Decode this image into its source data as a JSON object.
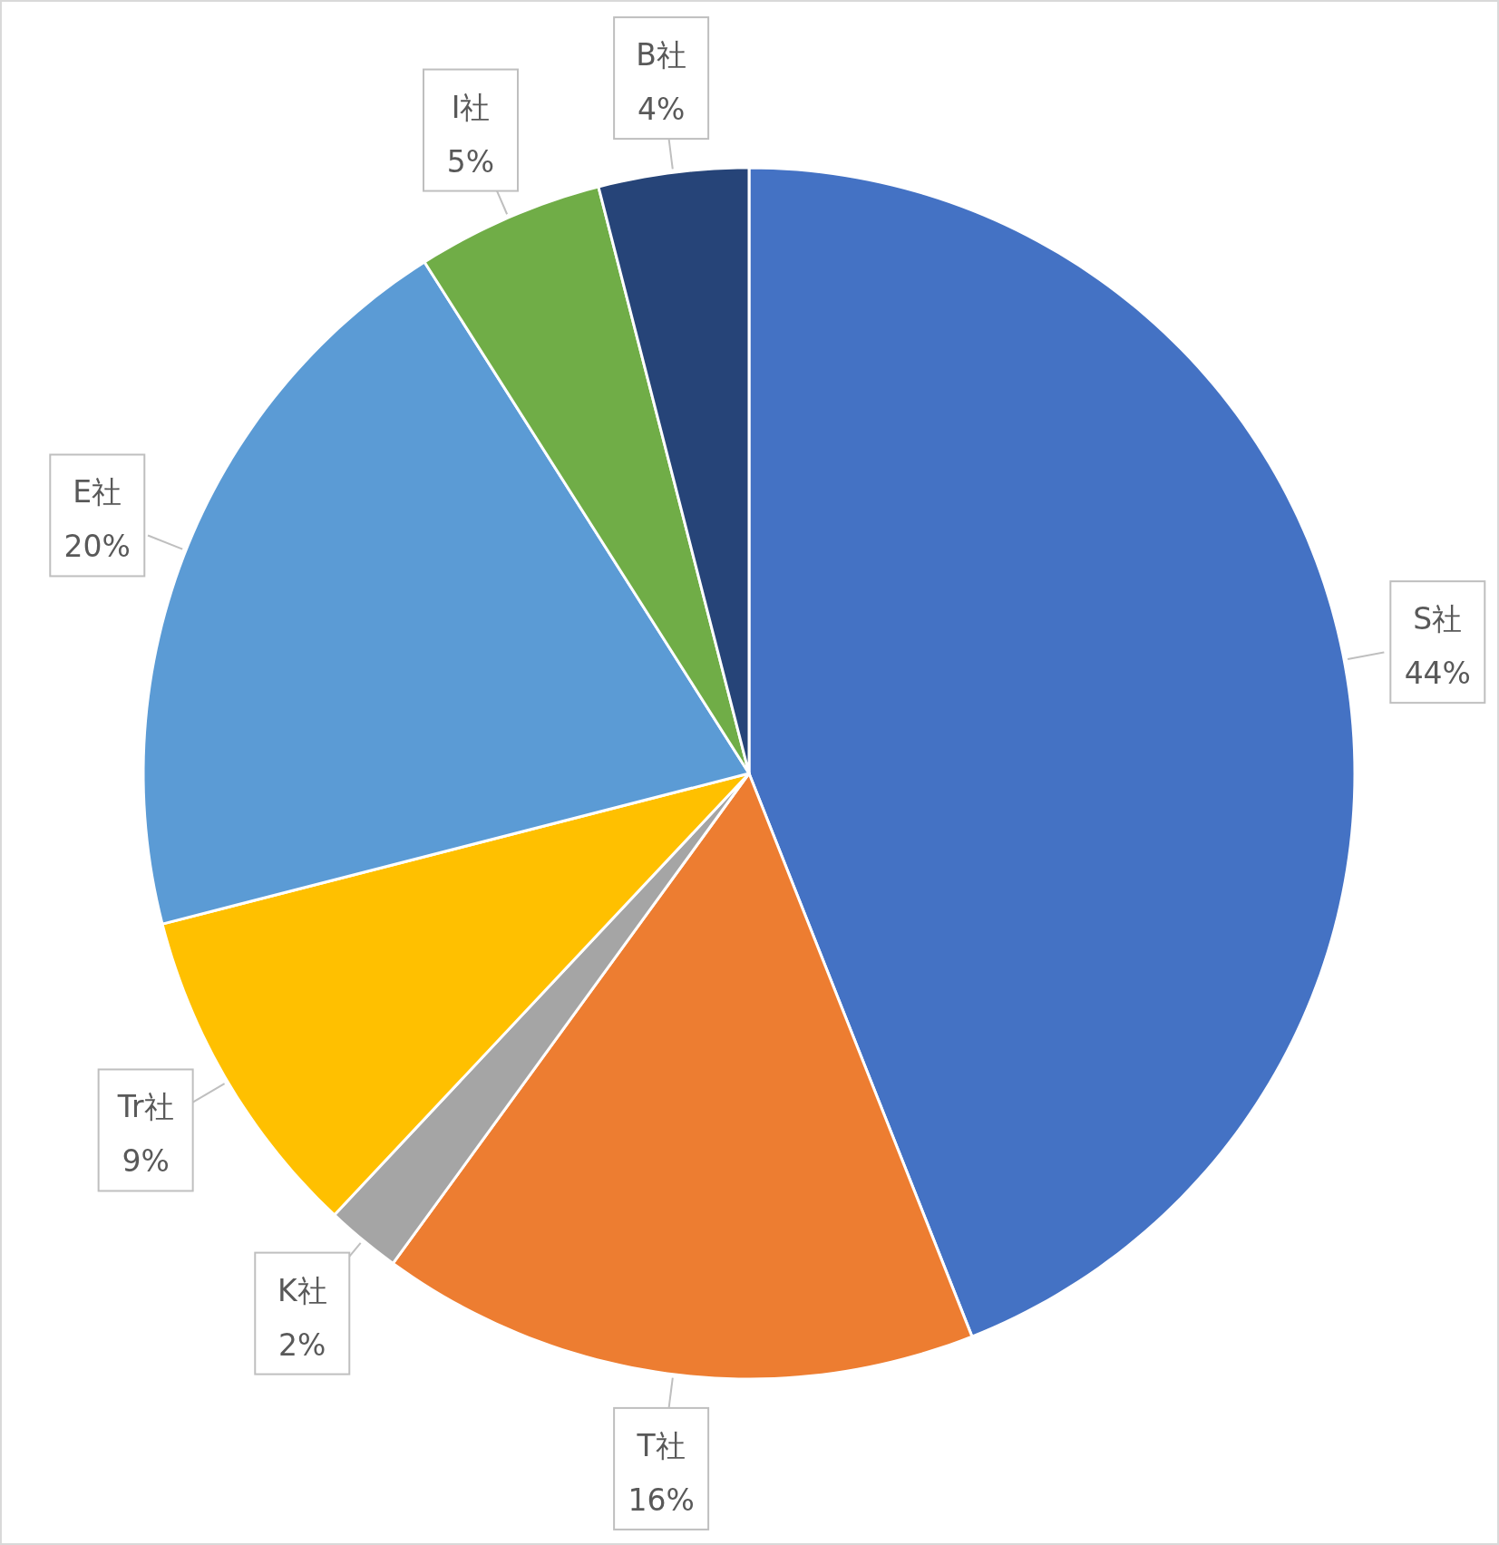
{
  "chart_data": {
    "type": "pie",
    "categories": [
      "S社",
      "T社",
      "K社",
      "Tr社",
      "E社",
      "I社",
      "B社"
    ],
    "values": [
      44,
      16,
      2,
      9,
      20,
      5,
      4
    ],
    "colors": [
      "#4472c4",
      "#ed7d31",
      "#a5a5a5",
      "#ffc000",
      "#5b9bd5",
      "#70ad47",
      "#264478"
    ],
    "value_labels": [
      "44%",
      "16%",
      "2%",
      "9%",
      "20%",
      "5%",
      "4%"
    ],
    "data_labels": true
  }
}
